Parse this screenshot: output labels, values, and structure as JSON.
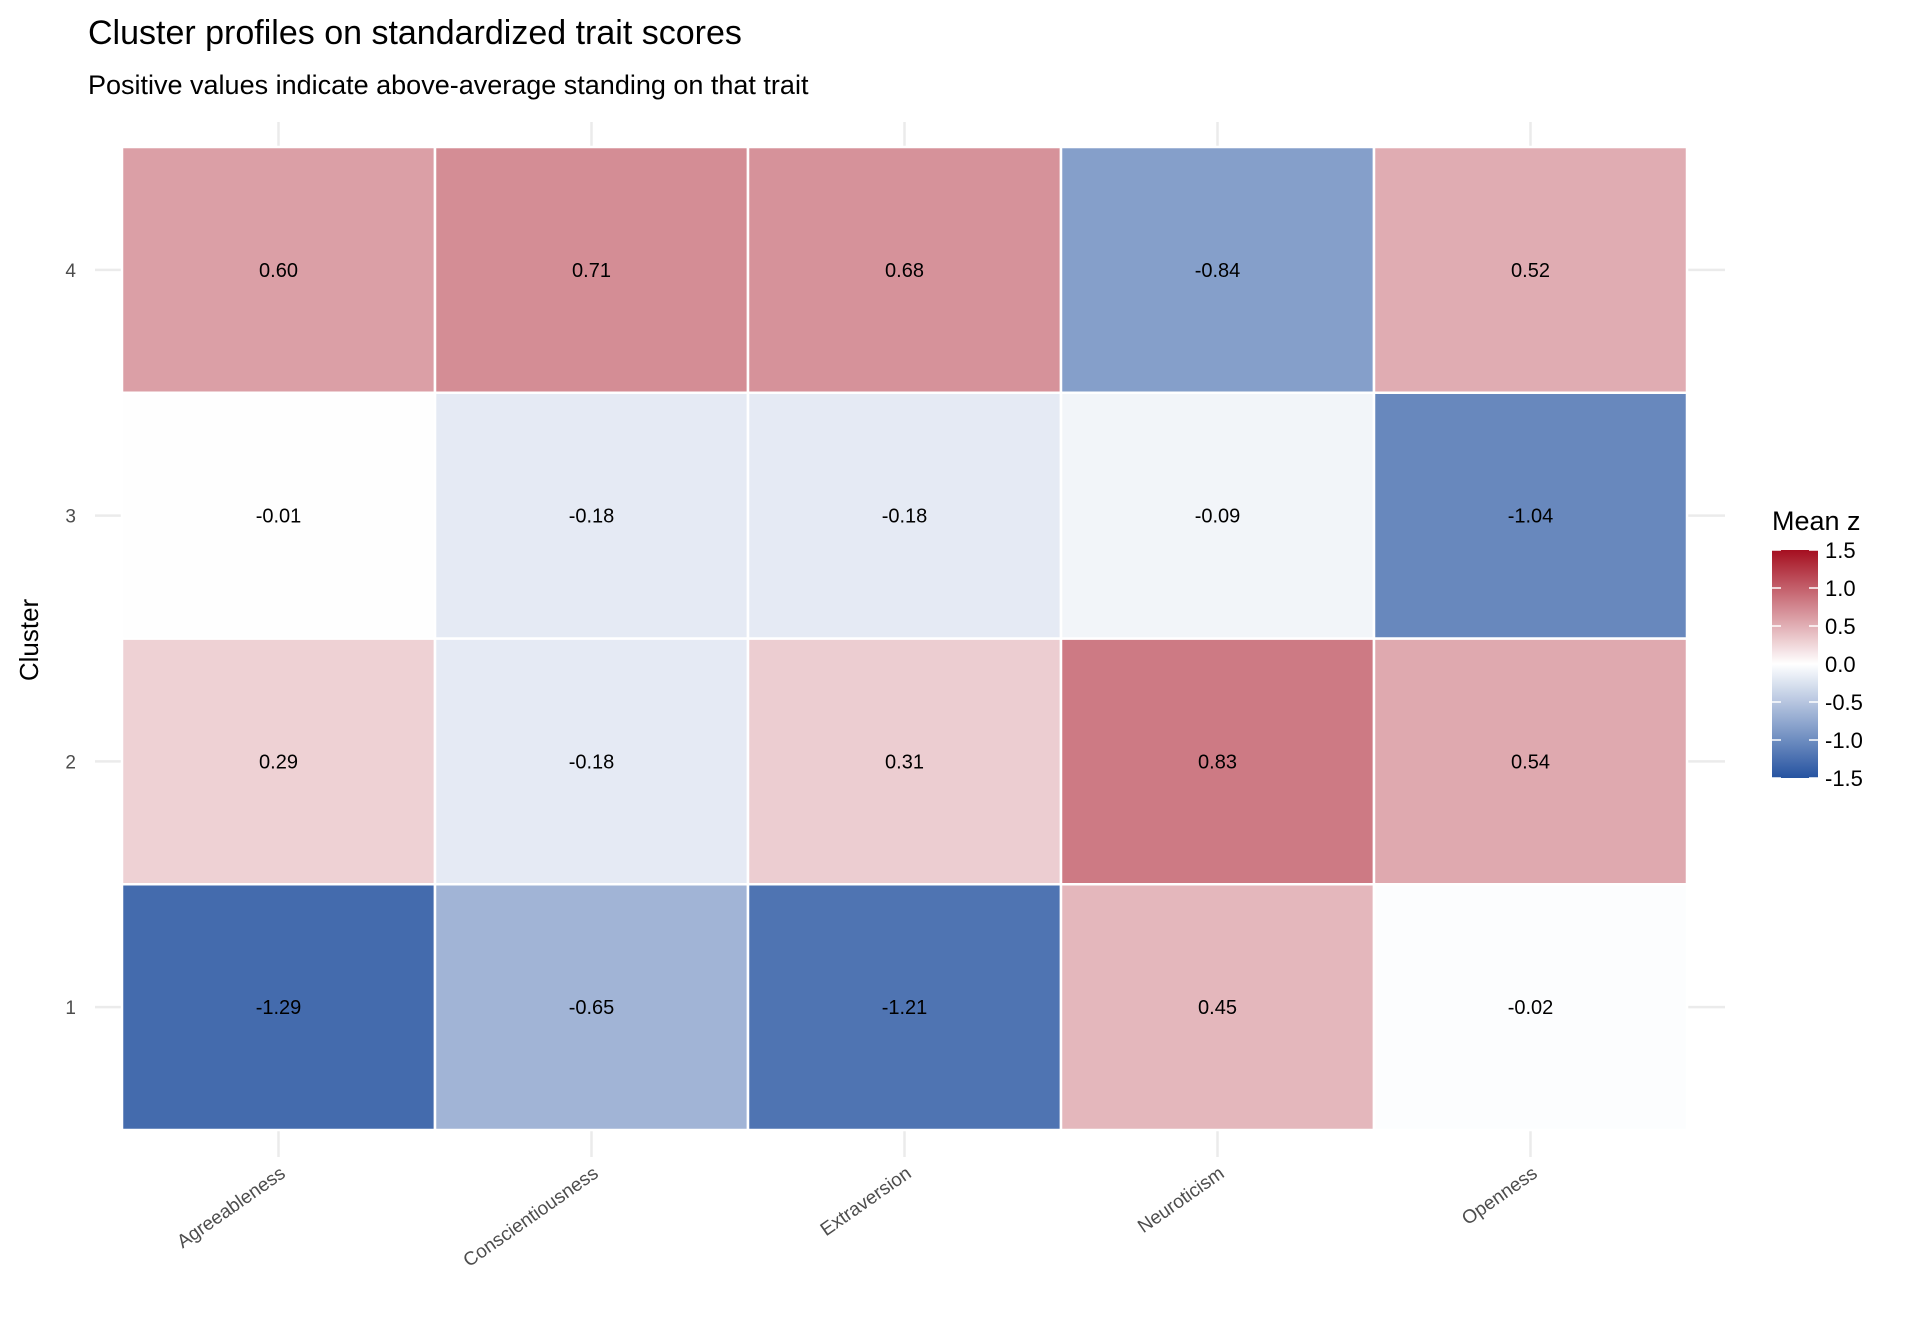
{
  "chart_data": {
    "type": "heatmap",
    "title": "Cluster profiles on standardized trait scores",
    "subtitle": "Positive values indicate above-average standing on that trait",
    "xlabel": "",
    "ylabel": "Cluster",
    "x_categories": [
      "Agreeableness",
      "Conscientiousness",
      "Extraversion",
      "Neuroticism",
      "Openness"
    ],
    "y_categories": [
      "1",
      "2",
      "3",
      "4"
    ],
    "values": [
      [
        -1.29,
        -0.65,
        -1.21,
        0.45,
        -0.02
      ],
      [
        0.29,
        -0.18,
        0.31,
        0.83,
        0.54
      ],
      [
        -0.01,
        -0.18,
        -0.18,
        -0.09,
        -1.04
      ],
      [
        0.6,
        0.71,
        0.68,
        -0.84,
        0.52
      ]
    ],
    "value_labels": [
      [
        "-1.29",
        "-0.65",
        "-1.21",
        "0.45",
        "-0.02"
      ],
      [
        "0.29",
        "-0.18",
        "0.31",
        "0.83",
        "0.54"
      ],
      [
        "-0.01",
        "-0.18",
        "-0.18",
        "-0.09",
        "-1.04"
      ],
      [
        "0.60",
        "0.71",
        "0.68",
        "-0.84",
        "0.52"
      ]
    ],
    "legend": {
      "title": "Mean z",
      "placement": "right",
      "limits": [
        -1.5,
        1.5
      ],
      "ticks": [
        "1.5",
        "1.0",
        "0.5",
        "0.0",
        "-0.5",
        "-1.0",
        "-1.5"
      ],
      "low_color": "#2553A0",
      "mid_color": "#FFFFFF",
      "high_color": "#A50F20"
    }
  }
}
